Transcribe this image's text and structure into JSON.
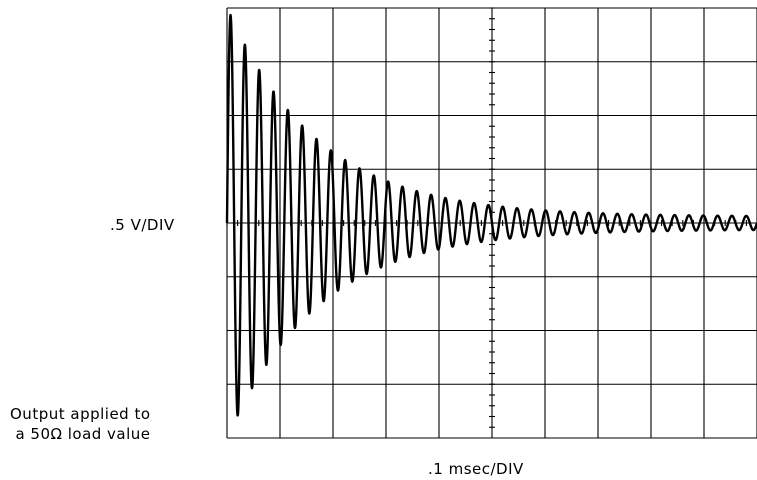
{
  "chart_data": {
    "type": "line",
    "title": "",
    "ylabel": ".5 V/DIV",
    "xlabel": ".1 msec/DIV",
    "annotation_lines": [
      "Output applied to",
      "a 50Ω load value"
    ],
    "divisions": {
      "x": 10,
      "y": 8
    },
    "xlim": [
      0,
      1.0
    ],
    "xunit": "msec",
    "ylim": [
      -2.0,
      2.0
    ],
    "yunit": "V",
    "grid": true,
    "series": [
      {
        "signal": "damped sinusoid",
        "frequency_khz": 37,
        "initial_amplitude_v": 1.95,
        "decay_time_constant_ms": 0.17,
        "settled_ripple_amplitude_v": 0.06,
        "offset_v": 0.0,
        "points": [
          [
            0.0,
            0.0
          ],
          [
            0.007,
            1.95
          ],
          [
            0.02,
            -1.9
          ],
          [
            0.1,
            1.1
          ],
          [
            0.11,
            -1.0
          ],
          [
            0.2,
            0.65
          ],
          [
            0.215,
            -0.5
          ],
          [
            0.3,
            0.45
          ],
          [
            0.315,
            -0.35
          ],
          [
            0.4,
            0.3
          ],
          [
            0.415,
            -0.25
          ],
          [
            0.5,
            0.22
          ],
          [
            0.515,
            -0.18
          ],
          [
            0.6,
            0.1
          ],
          [
            0.7,
            0.08
          ],
          [
            0.8,
            0.07
          ],
          [
            0.9,
            0.06
          ],
          [
            1.0,
            0.06
          ]
        ]
      }
    ]
  }
}
